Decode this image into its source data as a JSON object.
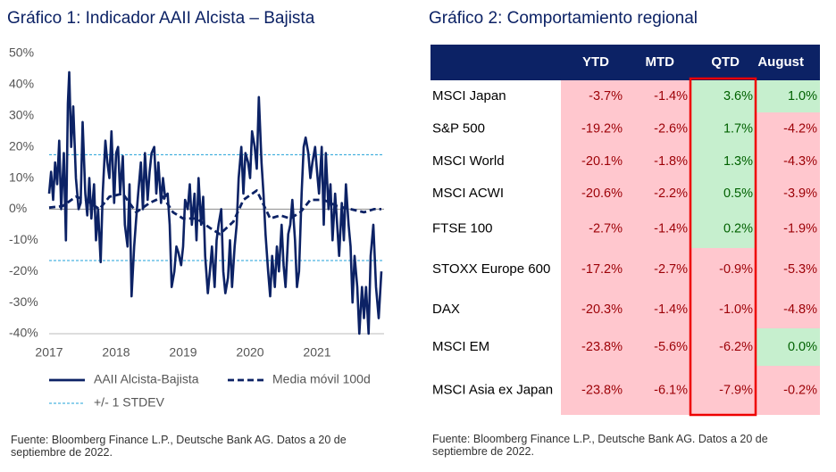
{
  "chart_data": {
    "type": "line",
    "title": "Gráfico 1: Indicador AAII Alcista – Bajista",
    "series": [
      {
        "name": "AAII Alcista-Bajista",
        "color": "#0c2265",
        "style": "solid",
        "x": [
          2017.0,
          2017.03,
          2017.06,
          2017.09,
          2017.12,
          2017.15,
          2017.18,
          2017.22,
          2017.25,
          2017.28,
          2017.3,
          2017.33,
          2017.36,
          2017.4,
          2017.44,
          2017.47,
          2017.5,
          2017.54,
          2017.57,
          2017.6,
          2017.63,
          2017.67,
          2017.7,
          2017.73,
          2017.77,
          2017.8,
          2017.84,
          2017.87,
          2017.9,
          2017.93,
          2017.97,
          2018.0,
          2018.03,
          2018.06,
          2018.1,
          2018.13,
          2018.17,
          2018.2,
          2018.23,
          2018.27,
          2018.3,
          2018.33,
          2018.37,
          2018.4,
          2018.43,
          2018.47,
          2018.5,
          2018.53,
          2018.57,
          2018.6,
          2018.63,
          2018.67,
          2018.7,
          2018.73,
          2018.77,
          2018.8,
          2018.83,
          2018.87,
          2018.9,
          2018.93,
          2018.97,
          2019.0,
          2019.03,
          2019.07,
          2019.1,
          2019.13,
          2019.17,
          2019.2,
          2019.23,
          2019.27,
          2019.3,
          2019.33,
          2019.37,
          2019.4,
          2019.43,
          2019.47,
          2019.5,
          2019.53,
          2019.57,
          2019.6,
          2019.63,
          2019.67,
          2019.7,
          2019.73,
          2019.77,
          2019.8,
          2019.83,
          2019.87,
          2019.9,
          2019.93,
          2019.97,
          2020.0,
          2020.03,
          2020.07,
          2020.1,
          2020.13,
          2020.17,
          2020.2,
          2020.23,
          2020.27,
          2020.3,
          2020.33,
          2020.37,
          2020.4,
          2020.43,
          2020.47,
          2020.5,
          2020.53,
          2020.57,
          2020.6,
          2020.63,
          2020.67,
          2020.7,
          2020.73,
          2020.77,
          2020.8,
          2020.83,
          2020.87,
          2020.9,
          2020.93,
          2020.97,
          2021.0,
          2021.03,
          2021.07,
          2021.1,
          2021.13,
          2021.17,
          2021.2,
          2021.23,
          2021.27,
          2021.3,
          2021.33,
          2021.37,
          2021.4,
          2021.43,
          2021.47,
          2021.5,
          2021.53,
          2021.56,
          2021.6,
          2021.63,
          2021.67,
          2021.7,
          2021.73,
          2021.77,
          2021.8,
          2021.84,
          2021.88,
          2021.92,
          2021.96
        ],
        "values": [
          5,
          12,
          3,
          15,
          8,
          22,
          0,
          18,
          -10,
          34,
          44,
          20,
          33,
          10,
          0,
          2,
          28,
          5,
          -2,
          10,
          -3,
          8,
          -10,
          0,
          -17,
          5,
          22,
          15,
          10,
          25,
          2,
          18,
          20,
          5,
          17,
          -5,
          -12,
          8,
          -28,
          -12,
          -3,
          5,
          15,
          0,
          18,
          3,
          12,
          18,
          20,
          5,
          15,
          2,
          10,
          4,
          5,
          -5,
          -25,
          -20,
          -12,
          -14,
          -18,
          -12,
          3,
          0,
          8,
          -5,
          5,
          -10,
          10,
          -5,
          4,
          -15,
          -27,
          -20,
          -12,
          -25,
          -10,
          -5,
          0,
          -20,
          -27,
          -22,
          -10,
          -25,
          -12,
          -5,
          10,
          20,
          5,
          18,
          15,
          10,
          25,
          20,
          13,
          36,
          15,
          5,
          -8,
          -20,
          -28,
          -15,
          -25,
          -12,
          -20,
          -5,
          -18,
          -25,
          -8,
          -5,
          3,
          -10,
          -25,
          -20,
          5,
          20,
          23,
          18,
          10,
          15,
          20,
          12,
          5,
          20,
          -5,
          18,
          0,
          8,
          -10,
          5,
          -5,
          -15,
          2,
          -10,
          8,
          -5,
          -12,
          -30,
          -15,
          -25,
          -40,
          -25,
          -35,
          -25,
          -40,
          -15,
          -5,
          -25,
          -35,
          -20
        ]
      },
      {
        "name": "Media móvil 100d",
        "color": "#0c2265",
        "style": "dashed",
        "x": [
          2017.0,
          2017.2,
          2017.4,
          2017.55,
          2017.75,
          2017.9,
          2018.1,
          2018.3,
          2018.5,
          2018.7,
          2018.85,
          2019.0,
          2019.2,
          2019.4,
          2019.55,
          2019.75,
          2019.9,
          2020.1,
          2020.3,
          2020.45,
          2020.6,
          2020.75,
          2020.9,
          2021.1,
          2021.3,
          2021.5,
          2021.7,
          2021.85,
          2021.96
        ],
        "values": [
          0.5,
          1,
          4,
          3,
          0,
          4,
          5,
          -1,
          2,
          4,
          -1,
          -3,
          -3,
          -6,
          -8,
          -4,
          3,
          6,
          -3,
          -2,
          -3,
          -1,
          3,
          3,
          1,
          0,
          -1,
          0,
          0
        ]
      }
    ],
    "stdev": {
      "name": "+/- 1 STDEV",
      "color": "#1fa0d8",
      "values": [
        17.5,
        -16.5
      ]
    },
    "xlim": [
      2017,
      2022
    ],
    "xticks": [
      2017,
      2018,
      2019,
      2020,
      2021
    ],
    "ylim": [
      -40,
      50
    ],
    "yticks": [
      {
        "value": -40,
        "label": "-40%"
      },
      {
        "value": -30,
        "label": "-30%"
      },
      {
        "value": -20,
        "label": "-20%"
      },
      {
        "value": -10,
        "label": "-10%"
      },
      {
        "value": 0,
        "label": "0%"
      },
      {
        "value": 10,
        "label": "10%"
      },
      {
        "value": 20,
        "label": "20%"
      },
      {
        "value": 30,
        "label": "30%"
      },
      {
        "value": 40,
        "label": "40%"
      },
      {
        "value": 50,
        "label": "50%"
      }
    ],
    "source": "Fuente: Bloomberg Finance L.P., Deutsche Bank AG. Datos a 20 de septiembre de 2022."
  },
  "table": {
    "title": "Gráfico 2: Comportamiento regional",
    "columns": [
      "YTD",
      "MTD",
      "QTD",
      "August"
    ],
    "rows": [
      {
        "name": "MSCI Japan",
        "cells": [
          "-3.7%",
          "-1.4%",
          "3.6%",
          "1.0%"
        ]
      },
      {
        "name": "S&P 500",
        "cells": [
          "-19.2%",
          "-2.6%",
          "1.7%",
          "-4.2%"
        ]
      },
      {
        "name": "MSCI World",
        "cells": [
          "-20.1%",
          "-1.8%",
          "1.3%",
          "-4.3%"
        ]
      },
      {
        "name": "MSCI ACWI",
        "cells": [
          "-20.6%",
          "-2.2%",
          "0.5%",
          "-3.9%"
        ]
      },
      {
        "name": "FTSE 100",
        "cells": [
          "-2.7%",
          "-1.4%",
          "0.2%",
          "-1.9%"
        ]
      },
      {
        "name": "STOXX Europe 600",
        "cells": [
          "-17.2%",
          "-2.7%",
          "-0.9%",
          "-5.3%"
        ]
      },
      {
        "name": "DAX",
        "cells": [
          "-20.3%",
          "-1.4%",
          "-1.0%",
          "-4.8%"
        ]
      },
      {
        "name": "MSCI EM",
        "cells": [
          "-23.8%",
          "-5.6%",
          "-6.2%",
          "0.0%"
        ]
      },
      {
        "name": "MSCI Asia ex Japan",
        "cells": [
          "-23.8%",
          "-6.1%",
          "-7.9%",
          "-0.2%"
        ]
      }
    ],
    "source": "Fuente: Bloomberg Finance L.P., Deutsche Bank AG. Datos a 20 de septiembre de 2022."
  }
}
